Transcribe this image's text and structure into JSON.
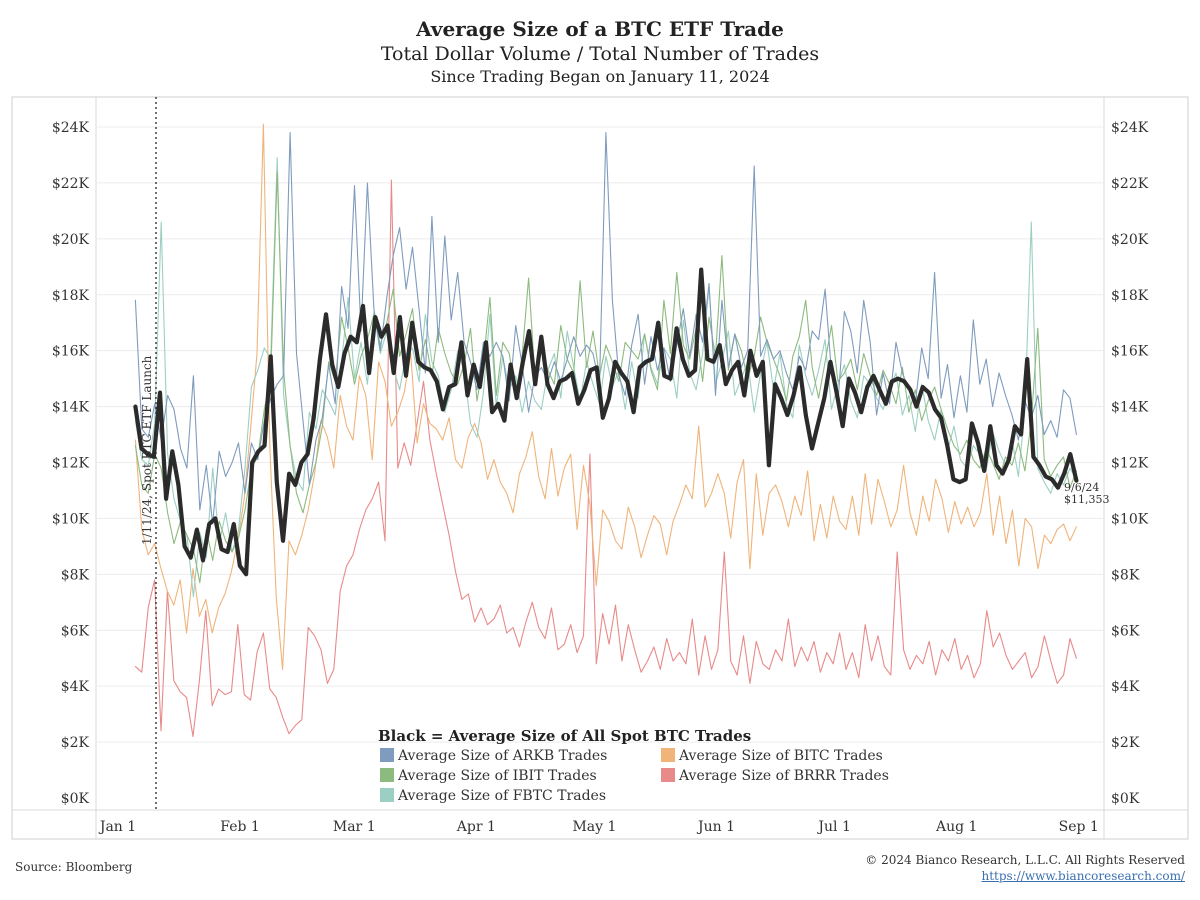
{
  "header": {
    "title": "Average Size of a BTC ETF Trade",
    "subtitle": "Total Dollar Volume / Total Number of Trades",
    "subtitle2": "Since Trading Began on January 11, 2024"
  },
  "footer": {
    "source": "Source: Bloomberg",
    "copyright": "© 2024 Bianco Research, L.L.C. All Rights Reserved",
    "url": "https://www.biancoresearch.com/"
  },
  "chart_data": {
    "type": "line",
    "x_ticks": [
      "Jan 1",
      "Feb 1",
      "Mar 1",
      "Apr 1",
      "May 1",
      "Jun 1",
      "Jul 1",
      "Aug 1",
      "Sep 1"
    ],
    "y_ticks": [
      "$0K",
      "$2K",
      "$4K",
      "$6K",
      "$8K",
      "$10K",
      "$12K",
      "$14K",
      "$16K",
      "$18K",
      "$20K",
      "$22K",
      "$24K"
    ],
    "ylim": [
      0,
      24000
    ],
    "x_start": "2024-01-01",
    "x_end": "2024-09-13",
    "grid": true,
    "launch_annotation": "1/11/24, Spot BTC ETF Launch",
    "end_annotation_date": "9/6/24",
    "end_annotation_value": "$11,353",
    "legend_title": "Black = Average Size of All Spot BTC Trades",
    "series": [
      {
        "name": "Average Size of ARKB Trades",
        "color": "#7f9bbd",
        "values": [
          17800,
          13200,
          12900,
          14100,
          12800,
          14400,
          13900,
          12500,
          11800,
          15100,
          10300,
          11900,
          9800,
          12400,
          11500,
          12000,
          12700,
          10900,
          12700,
          12100,
          13500,
          14300,
          14800,
          15100,
          23800,
          15900,
          13500,
          11200,
          12800,
          13600,
          15500,
          14100,
          18300,
          16800,
          21900,
          16700,
          22000,
          17500,
          16000,
          17900,
          19400,
          20400,
          18200,
          19700,
          17500,
          15200,
          20800,
          16300,
          20100,
          17100,
          18800,
          16300,
          15600,
          14600,
          16300,
          15800,
          16300,
          15800,
          14200,
          16900,
          15500,
          13800,
          15100,
          15400,
          14900,
          15600,
          14900,
          15700,
          16500,
          15800,
          16200,
          15900,
          14800,
          23800,
          17800,
          15100,
          14400,
          16200,
          17300,
          14800,
          16500,
          15300,
          16100,
          14900,
          16200,
          17500,
          15800,
          17300,
          16300,
          18400,
          14400,
          17800,
          15400,
          16600,
          15400,
          16000,
          22600,
          15800,
          16400,
          15700,
          16000,
          15200,
          14600,
          15800,
          15300,
          16700,
          16400,
          18200,
          15200,
          14100,
          17400,
          16700,
          15200,
          17800,
          16300,
          13700,
          15200,
          14100,
          16300,
          15200,
          14600,
          14100,
          16100,
          15000,
          18800,
          14300,
          15500,
          13600,
          15100,
          13800,
          17100,
          14800,
          15700,
          14000,
          15200,
          14400,
          13700,
          12800,
          14200,
          13600,
          14400,
          13000,
          13500,
          12900,
          14600,
          14300,
          13000
        ]
      },
      {
        "name": "Average Size of IBIT Trades",
        "color": "#8dba7f",
        "values": [
          12600,
          11200,
          10900,
          12300,
          11800,
          10200,
          9100,
          9900,
          9400,
          8900,
          7700,
          9600,
          8500,
          9900,
          9200,
          8800,
          9300,
          10300,
          11800,
          12200,
          13900,
          15100,
          22400,
          15300,
          12600,
          10900,
          10200,
          11200,
          12000,
          13300,
          15600,
          14900,
          17200,
          16100,
          14800,
          15800,
          16400,
          17300,
          16200,
          17000,
          18200,
          15800,
          16600,
          17500,
          15300,
          16400,
          15100,
          16800,
          15900,
          15200,
          14800,
          15500,
          16800,
          14200,
          15600,
          17900,
          14400,
          16300,
          15900,
          14500,
          15800,
          18600,
          15000,
          16100,
          15300,
          14800,
          16900,
          15700,
          15200,
          18500,
          15400,
          16700,
          15100,
          16200,
          15600,
          14900,
          16300,
          16000,
          15700,
          16600,
          15300,
          14600,
          17800,
          15900,
          18800,
          16200,
          15700,
          16800,
          14900,
          17200,
          15800,
          19400,
          15300,
          16600,
          16000,
          15000,
          15800,
          17200,
          16300,
          15700,
          15100,
          14200,
          15800,
          16500,
          17800,
          15400,
          14300,
          15600,
          16900,
          14900,
          15200,
          15700,
          14600,
          15900,
          15100,
          14400,
          15300,
          14800,
          14100,
          15400,
          13800,
          14600,
          13500,
          14200,
          14700,
          13900,
          13200,
          12600,
          12300,
          12800,
          12100,
          11800,
          12500,
          12000,
          11400,
          12200,
          11900,
          12700,
          11700,
          13500,
          16800,
          12100,
          11500,
          11900,
          12200,
          11100,
          11700
        ]
      },
      {
        "name": "Average Size of FBTC Trades",
        "color": "#9ccfc4",
        "values": [
          13500,
          12100,
          11900,
          13400,
          20600,
          12300,
          10700,
          9900,
          9400,
          7200,
          9500,
          8600,
          11800,
          9100,
          10200,
          8800,
          9600,
          11800,
          14700,
          15300,
          16100,
          15700,
          22900,
          14400,
          12600,
          11400,
          11000,
          13800,
          13200,
          14600,
          14200,
          13700,
          15600,
          17900,
          15000,
          16300,
          14800,
          17400,
          15900,
          16700,
          15400,
          14600,
          15900,
          16100,
          14900,
          17300,
          15600,
          15100,
          13800,
          14600,
          16000,
          15300,
          13400,
          12900,
          14500,
          17300,
          14000,
          15800,
          14600,
          15100,
          13800,
          14900,
          14200,
          13900,
          15300,
          15900,
          14300,
          16700,
          15400,
          14200,
          15600,
          14800,
          14100,
          15800,
          14700,
          15300,
          13900,
          15600,
          14300,
          16600,
          15400,
          14800,
          16100,
          15700,
          14300,
          17100,
          15200,
          14600,
          15900,
          18300,
          14800,
          15600,
          16700,
          14400,
          15000,
          15600,
          13800,
          15200,
          16300,
          14600,
          15900,
          14100,
          13600,
          16200,
          15100,
          14400,
          15300,
          16400,
          13900,
          14800,
          15500,
          14200,
          13600,
          15100,
          14800,
          14300,
          13900,
          14600,
          15200,
          13700,
          14400,
          13100,
          14800,
          13500,
          12800,
          13900,
          12400,
          13300,
          12100,
          11800,
          12600,
          12300,
          11700,
          13100,
          12400,
          11900,
          12800,
          11500,
          13900,
          20600,
          11800,
          11300,
          10900,
          11600,
          11200,
          11800,
          11400
        ]
      },
      {
        "name": "Average Size of BITC Trades",
        "color": "#f0b47a",
        "values": [
          12800,
          9600,
          8700,
          9100,
          8200,
          7400,
          6900,
          7800,
          5900,
          8200,
          6500,
          7100,
          5900,
          6800,
          7300,
          8100,
          9200,
          10700,
          13200,
          15900,
          24100,
          12600,
          7200,
          4600,
          9200,
          8700,
          9400,
          10300,
          11600,
          13500,
          12900,
          11800,
          14400,
          13300,
          12800,
          15100,
          14400,
          12100,
          15600,
          14900,
          13300,
          13800,
          14500,
          15900,
          12700,
          14100,
          13400,
          13200,
          12800,
          13600,
          12100,
          11800,
          12900,
          13400,
          12700,
          11400,
          12100,
          11300,
          10900,
          10200,
          11600,
          12200,
          13100,
          11500,
          10700,
          12500,
          10800,
          11800,
          12300,
          9600,
          11900,
          10500,
          7600,
          10300,
          9900,
          9200,
          8900,
          10400,
          9700,
          8600,
          9400,
          10100,
          9800,
          8700,
          9900,
          10500,
          11200,
          10700,
          13300,
          10400,
          10900,
          11600,
          10900,
          9300,
          11300,
          12100,
          8200,
          11600,
          9400,
          10900,
          11200,
          10600,
          9700,
          10800,
          10100,
          11700,
          9200,
          10500,
          9300,
          10800,
          9900,
          9600,
          10800,
          9400,
          11600,
          9800,
          11400,
          10600,
          9700,
          10300,
          11900,
          10200,
          9400,
          10800,
          9900,
          11400,
          10700,
          9500,
          10600,
          9800,
          10400,
          9700,
          10200,
          11600,
          9400,
          10800,
          9100,
          10300,
          8300,
          10000,
          9700,
          8200,
          9400,
          9100,
          9600,
          9800,
          9200,
          9700
        ]
      },
      {
        "name": "Average Size of BRRR Trades",
        "color": "#e88a8a",
        "values": [
          4700,
          4500,
          6800,
          7800,
          2400,
          7400,
          4200,
          3800,
          3600,
          2200,
          4200,
          6700,
          3300,
          3900,
          3700,
          3800,
          6200,
          3700,
          3500,
          5200,
          5900,
          3900,
          3600,
          2900,
          2300,
          2600,
          2800,
          6100,
          5800,
          5300,
          4100,
          4600,
          7400,
          8300,
          8700,
          9600,
          10300,
          10700,
          11300,
          9200,
          22100,
          11800,
          12700,
          11900,
          13400,
          14900,
          12800,
          11600,
          10500,
          9400,
          8100,
          7100,
          7300,
          6300,
          6800,
          6200,
          6400,
          6900,
          5900,
          6100,
          5400,
          6300,
          7000,
          6100,
          5700,
          6800,
          5300,
          5500,
          6200,
          5200,
          5800,
          12300,
          4800,
          6600,
          5500,
          6900,
          4900,
          6200,
          5300,
          4500,
          4900,
          5400,
          4600,
          5700,
          4900,
          5200,
          4800,
          6400,
          4400,
          5800,
          4600,
          5300,
          8800,
          4900,
          4400,
          5800,
          4100,
          5600,
          4800,
          4600,
          5300,
          4900,
          6400,
          4700,
          5400,
          4900,
          5600,
          4500,
          5200,
          4800,
          5900,
          4600,
          5200,
          4300,
          6200,
          4900,
          5800,
          4700,
          4400,
          8800,
          5300,
          4600,
          5100,
          4800,
          5600,
          4400,
          5300,
          4900,
          5700,
          4600,
          5100,
          4300,
          4800,
          6700,
          5400,
          5900,
          5100,
          4600,
          4900,
          5200,
          4300,
          4700,
          5800,
          4900,
          4100,
          4400,
          5700,
          5000
        ]
      },
      {
        "name": "All Spot BTC Trades",
        "color": "#2b2b2b",
        "values": [
          14000,
          12500,
          12300,
          12200,
          14500,
          10700,
          12400,
          11200,
          9000,
          8600,
          9600,
          8500,
          9800,
          10000,
          8900,
          8800,
          9800,
          8300,
          8000,
          12000,
          12400,
          12600,
          15800,
          11300,
          9200,
          11600,
          11200,
          12000,
          12300,
          13600,
          15700,
          17300,
          15500,
          14700,
          15900,
          16500,
          16300,
          17600,
          15200,
          17200,
          16500,
          16900,
          15200,
          17200,
          15100,
          17000,
          15600,
          15400,
          15300,
          14900,
          13900,
          14700,
          14800,
          16300,
          14400,
          15500,
          14700,
          16300,
          13800,
          14100,
          13500,
          15500,
          14300,
          15600,
          16700,
          14800,
          16500,
          14800,
          14300,
          14900,
          15000,
          15200,
          14100,
          14600,
          15300,
          15400,
          13600,
          14300,
          15600,
          15200,
          14900,
          13800,
          15400,
          15600,
          15700,
          17000,
          15100,
          15000,
          16800,
          15700,
          15100,
          15300,
          18900,
          15700,
          15600,
          16200,
          14800,
          15300,
          15600,
          14400,
          16000,
          15100,
          15600,
          11900,
          14800,
          14300,
          13700,
          14400,
          15400,
          13700,
          12500,
          13400,
          14300,
          15600,
          14500,
          13300,
          15000,
          14500,
          13800,
          14700,
          15100,
          14600,
          14100,
          14900,
          15000,
          14900,
          14600,
          14000,
          14700,
          14500,
          13900,
          13600,
          12600,
          11400,
          11300,
          11400,
          13400,
          12700,
          11700,
          13300,
          11900,
          11600,
          12100,
          13300,
          13000,
          15700,
          12200,
          11900,
          11500,
          11400,
          11100,
          11600,
          12300,
          11353
        ]
      }
    ]
  }
}
